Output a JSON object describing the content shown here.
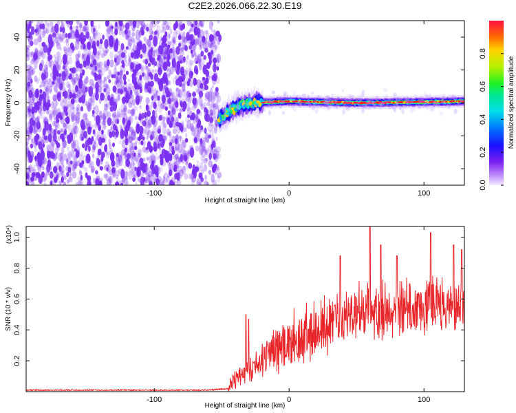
{
  "figure_title": "C2E2.2026.066.22.30.E19",
  "colors": {
    "snr_line": "#e8262a",
    "noise_scatter": "#7b2ff0",
    "frame": "#000000"
  },
  "chart_data": [
    {
      "id": "spectrogram",
      "type": "heatmap",
      "title": "",
      "xlabel": "Height of straight line (km)",
      "ylabel": "Frequency (Hz)",
      "xlim": [
        -195,
        130
      ],
      "ylim": [
        -50,
        50
      ],
      "x_ticks": [
        -100,
        0,
        100
      ],
      "x_tick_labels": [
        "-100",
        "0",
        "100"
      ],
      "y_ticks": [
        -40,
        -20,
        0,
        20,
        40
      ],
      "y_tick_labels": [
        "-40",
        "-20",
        "0",
        "20",
        "40"
      ],
      "colorbar": {
        "label": "Normalized spectral amplitude",
        "range": [
          0,
          1
        ],
        "ticks": [
          0.0,
          0.2,
          0.4,
          0.6,
          0.8
        ],
        "tick_labels": [
          "0.0",
          "0.2",
          "0.4",
          "0.6",
          "0.8"
        ]
      },
      "noise_region_x": [
        -195,
        -52
      ],
      "signal_band": {
        "x_start": -52,
        "x_end": 130,
        "center_freq_points": [
          [
            -52,
            -10
          ],
          [
            -45,
            -6
          ],
          [
            -40,
            -3
          ],
          [
            -35,
            -1
          ],
          [
            -25,
            0
          ],
          [
            0,
            1
          ],
          [
            50,
            0
          ],
          [
            100,
            0.5
          ],
          [
            130,
            1
          ]
        ],
        "description_amplitude": "high (0.8-1.0) from x≈-20 to 130, mixed (0.2-0.7) from x≈-52 to -20"
      }
    },
    {
      "id": "snr",
      "type": "line",
      "title": "",
      "xlabel": "Height of straight line (km)",
      "ylabel": "SNR (10 * v/v)",
      "y_multiplier": "(x10⁴)",
      "xlim": [
        -195,
        130
      ],
      "ylim": [
        0,
        1.07
      ],
      "x_ticks": [
        -100,
        0,
        100
      ],
      "x_tick_labels": [
        "-100",
        "0",
        "100"
      ],
      "y_ticks": [
        0.2,
        0.4,
        0.6,
        0.8,
        1.0
      ],
      "y_tick_labels": [
        "0.2",
        "0.4",
        "0.6",
        "0.8",
        "1.0"
      ],
      "series": [
        {
          "name": "SNR",
          "trend_x": [
            -195,
            -60,
            -45,
            -40,
            -35,
            -30,
            -25,
            -20,
            -15,
            -10,
            0,
            10,
            20,
            30,
            40,
            50,
            60,
            70,
            80,
            90,
            100,
            110,
            120,
            130
          ],
          "trend_y": [
            0.01,
            0.01,
            0.02,
            0.08,
            0.12,
            0.15,
            0.18,
            0.2,
            0.25,
            0.28,
            0.32,
            0.36,
            0.4,
            0.43,
            0.47,
            0.5,
            0.52,
            0.53,
            0.54,
            0.55,
            0.56,
            0.56,
            0.56,
            0.55
          ],
          "peaks": [
            [
              -32,
              0.5
            ],
            [
              -30,
              0.47
            ],
            [
              -16,
              0.3
            ],
            [
              38,
              0.88
            ],
            [
              60,
              1.07
            ],
            [
              68,
              0.95
            ],
            [
              80,
              0.88
            ],
            [
              105,
              1.03
            ],
            [
              122,
              0.95
            ],
            [
              128,
              0.92
            ]
          ],
          "noise_amplitude": 0.12,
          "n_points": 1300
        }
      ]
    }
  ]
}
